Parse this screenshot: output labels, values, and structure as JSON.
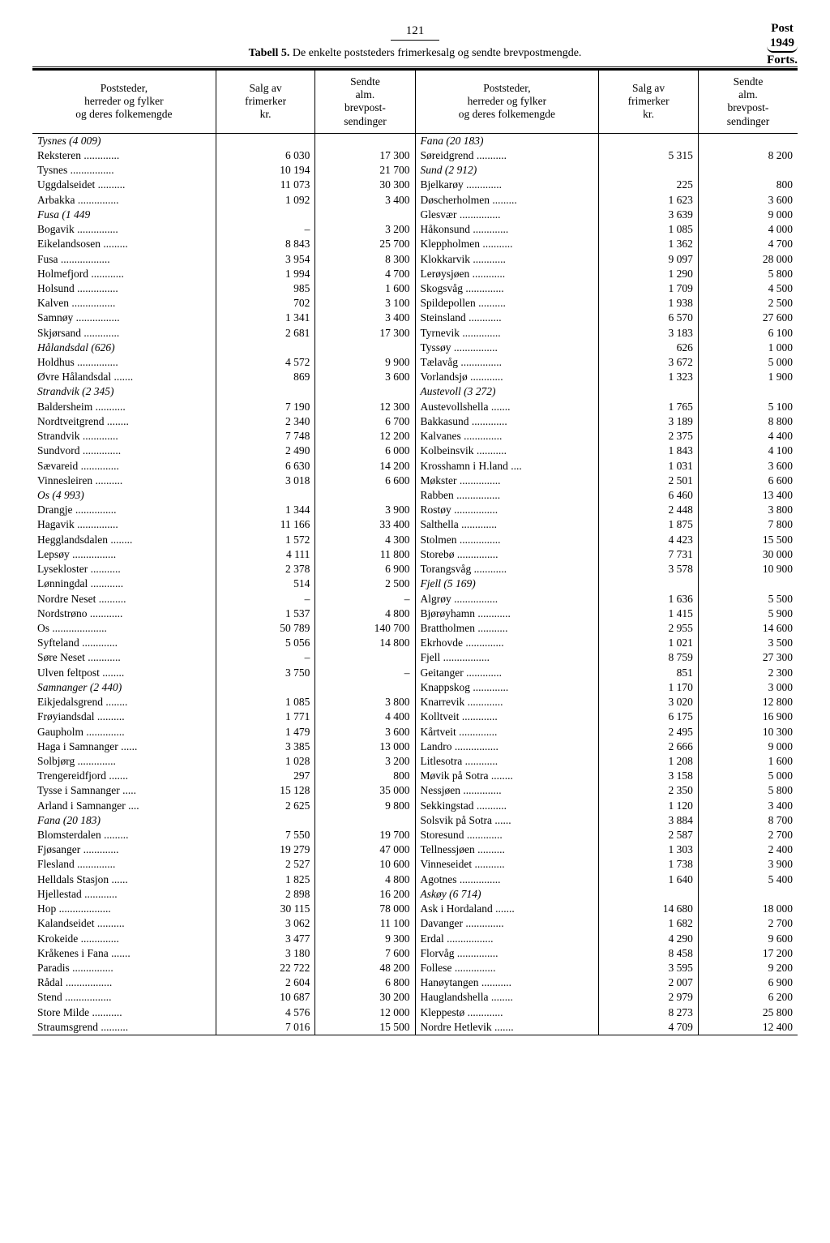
{
  "page_number": "121",
  "top_right_title": "Post",
  "top_right_year": "1949",
  "top_right_cont": "Forts.",
  "table_label": "Tabell 5.",
  "table_title": "De enkelte poststeders frimerkesalg og sendte brevpostmengde.",
  "header_col1": "Poststeder,\nherreder og fylker\nog deres folkemengde",
  "header_col2": "Salg av\nfrimerker\nkr.",
  "header_col3": "Sendte\nalm.\nbrevpost-\nsendinger",
  "left": [
    {
      "n": "Tysnes (4 009)",
      "r": true
    },
    {
      "n": "Reksteren",
      "a": "6 030",
      "b": "17 300"
    },
    {
      "n": "Tysnes",
      "a": "10 194",
      "b": "21 700"
    },
    {
      "n": "Uggdalseidet",
      "a": "11 073",
      "b": "30 300"
    },
    {
      "n": "Arbakka",
      "a": "1 092",
      "b": "3 400"
    },
    {
      "n": "Fusa (1 449",
      "r": true
    },
    {
      "n": "Bogavik",
      "a": "–",
      "b": "3 200"
    },
    {
      "n": "Eikelandsosen",
      "a": "8 843",
      "b": "25 700"
    },
    {
      "n": "Fusa",
      "a": "3 954",
      "b": "8 300"
    },
    {
      "n": "Holmefjord",
      "a": "1 994",
      "b": "4 700"
    },
    {
      "n": "Holsund",
      "a": "985",
      "b": "1 600"
    },
    {
      "n": "Kalven",
      "a": "702",
      "b": "3 100"
    },
    {
      "n": "Samnøy",
      "a": "1 341",
      "b": "3 400"
    },
    {
      "n": "Skjørsand",
      "a": "2 681",
      "b": "17 300"
    },
    {
      "n": "Hålandsdal (626)",
      "r": true
    },
    {
      "n": "Holdhus",
      "a": "4 572",
      "b": "9 900"
    },
    {
      "n": "Øvre Hålandsdal",
      "a": "869",
      "b": "3 600"
    },
    {
      "n": "Strandvik (2 345)",
      "r": true
    },
    {
      "n": "Baldersheim",
      "a": "7 190",
      "b": "12 300"
    },
    {
      "n": "Nordtveitgrend",
      "a": "2 340",
      "b": "6 700"
    },
    {
      "n": "Strandvik",
      "a": "7 748",
      "b": "12 200"
    },
    {
      "n": "Sundvord",
      "a": "2 490",
      "b": "6 000"
    },
    {
      "n": "Sævareid",
      "a": "6 630",
      "b": "14 200"
    },
    {
      "n": "Vinnesleiren",
      "a": "3 018",
      "b": "6 600"
    },
    {
      "n": "Os (4 993)",
      "r": true
    },
    {
      "n": "Drangje",
      "a": "1 344",
      "b": "3 900"
    },
    {
      "n": "Hagavik",
      "a": "11 166",
      "b": "33 400"
    },
    {
      "n": "Hegglandsdalen",
      "a": "1 572",
      "b": "4 300"
    },
    {
      "n": "Lepsøy",
      "a": "4 111",
      "b": "11 800"
    },
    {
      "n": "Lysekloster",
      "a": "2 378",
      "b": "6 900"
    },
    {
      "n": "Lønningdal",
      "a": "514",
      "b": "2 500"
    },
    {
      "n": "Nordre Neset",
      "a": "–",
      "b": "–"
    },
    {
      "n": "Nordstrøno",
      "a": "1 537",
      "b": "4 800"
    },
    {
      "n": "Os",
      "a": "50 789",
      "b": "140 700"
    },
    {
      "n": "Syfteland",
      "a": "5 056",
      "b": "14 800"
    },
    {
      "n": "Søre Neset",
      "a": "–",
      "b": ""
    },
    {
      "n": "Ulven feltpost",
      "a": "3 750",
      "b": "–"
    },
    {
      "n": "Samnanger (2 440)",
      "r": true
    },
    {
      "n": "Eikjedalsgrend",
      "a": "1 085",
      "b": "3 800"
    },
    {
      "n": "Frøyiandsdal",
      "a": "1 771",
      "b": "4 400"
    },
    {
      "n": "Gaupholm",
      "a": "1 479",
      "b": "3 600"
    },
    {
      "n": "Haga i Samnanger",
      "a": "3 385",
      "b": "13 000"
    },
    {
      "n": "Solbjørg",
      "a": "1 028",
      "b": "3 200"
    },
    {
      "n": "Trengereidfjord",
      "a": "297",
      "b": "800"
    },
    {
      "n": "Tysse i Samnanger",
      "a": "15 128",
      "b": "35 000"
    },
    {
      "n": "Arland i Samnanger",
      "a": "2 625",
      "b": "9 800"
    },
    {
      "n": "Fana (20 183)",
      "r": true
    },
    {
      "n": "Blomsterdalen",
      "a": "7 550",
      "b": "19 700"
    },
    {
      "n": "Fjøsanger",
      "a": "19 279",
      "b": "47 000"
    },
    {
      "n": "Flesland",
      "a": "2 527",
      "b": "10 600"
    },
    {
      "n": "Helldals Stasjon",
      "a": "1 825",
      "b": "4 800"
    },
    {
      "n": "Hjellestad",
      "a": "2 898",
      "b": "16 200"
    },
    {
      "n": "Hop",
      "a": "30 115",
      "b": "78 000"
    },
    {
      "n": "Kalandseidet",
      "a": "3 062",
      "b": "11 100"
    },
    {
      "n": "Krokeide",
      "a": "3 477",
      "b": "9 300"
    },
    {
      "n": "Kråkenes i Fana",
      "a": "3 180",
      "b": "7 600"
    },
    {
      "n": "Paradis",
      "a": "22 722",
      "b": "48 200"
    },
    {
      "n": "Rådal",
      "a": "2 604",
      "b": "6 800"
    },
    {
      "n": "Stend",
      "a": "10 687",
      "b": "30 200"
    },
    {
      "n": "Store Milde",
      "a": "4 576",
      "b": "12 000"
    },
    {
      "n": "Straumsgrend",
      "a": "7 016",
      "b": "15 500"
    }
  ],
  "right": [
    {
      "n": "Fana (20 183)",
      "r": true
    },
    {
      "n": "Søreidgrend",
      "a": "5 315",
      "b": "8 200"
    },
    {
      "n": "Sund (2 912)",
      "r": true
    },
    {
      "n": "Bjelkarøy",
      "a": "225",
      "b": "800"
    },
    {
      "n": "Døscherholmen",
      "a": "1 623",
      "b": "3 600"
    },
    {
      "n": "Glesvær",
      "a": "3 639",
      "b": "9 000"
    },
    {
      "n": "Håkonsund",
      "a": "1 085",
      "b": "4 000"
    },
    {
      "n": "Kleppholmen",
      "a": "1 362",
      "b": "4 700"
    },
    {
      "n": "Klokkarvik",
      "a": "9 097",
      "b": "28 000"
    },
    {
      "n": "Lerøysjøen",
      "a": "1 290",
      "b": "5 800"
    },
    {
      "n": "Skogsvåg",
      "a": "1 709",
      "b": "4 500"
    },
    {
      "n": "Spildepollen",
      "a": "1 938",
      "b": "2 500"
    },
    {
      "n": "Steinsland",
      "a": "6 570",
      "b": "27 600"
    },
    {
      "n": "Tyrnevik",
      "a": "3 183",
      "b": "6 100"
    },
    {
      "n": "Tyssøy",
      "a": "626",
      "b": "1 000"
    },
    {
      "n": "Tælavåg",
      "a": "3 672",
      "b": "5 000"
    },
    {
      "n": "Vorlandsjø",
      "a": "1 323",
      "b": "1 900"
    },
    {
      "n": "Austevoll (3 272)",
      "r": true
    },
    {
      "n": "Austevollshella",
      "a": "1 765",
      "b": "5 100"
    },
    {
      "n": "Bakkasund",
      "a": "3 189",
      "b": "8 800"
    },
    {
      "n": "Kalvanes",
      "a": "2 375",
      "b": "4 400"
    },
    {
      "n": "Kolbeinsvik",
      "a": "1 843",
      "b": "4 100"
    },
    {
      "n": "Krosshamn i H.land",
      "a": "1 031",
      "b": "3 600"
    },
    {
      "n": "Møkster",
      "a": "2 501",
      "b": "6 600"
    },
    {
      "n": "Rabben",
      "a": "6 460",
      "b": "13 400"
    },
    {
      "n": "Rostøy",
      "a": "2 448",
      "b": "3 800"
    },
    {
      "n": "Salthella",
      "a": "1 875",
      "b": "7 800"
    },
    {
      "n": "Stolmen",
      "a": "4 423",
      "b": "15 500"
    },
    {
      "n": "Storebø",
      "a": "7 731",
      "b": "30 000"
    },
    {
      "n": "Torangsvåg",
      "a": "3 578",
      "b": "10 900"
    },
    {
      "n": "Fjell (5 169)",
      "r": true
    },
    {
      "n": "Algrøy",
      "a": "1 636",
      "b": "5 500"
    },
    {
      "n": "Bjørøyhamn",
      "a": "1 415",
      "b": "5 900"
    },
    {
      "n": "Brattholmen",
      "a": "2 955",
      "b": "14 600"
    },
    {
      "n": "Ekrhovde",
      "a": "1 021",
      "b": "3 500"
    },
    {
      "n": "Fjell",
      "a": "8 759",
      "b": "27 300"
    },
    {
      "n": "Geitanger",
      "a": "851",
      "b": "2 300"
    },
    {
      "n": "Knappskog",
      "a": "1 170",
      "b": "3 000"
    },
    {
      "n": "Knarrevik",
      "a": "3 020",
      "b": "12 800"
    },
    {
      "n": "Kolltveit",
      "a": "6 175",
      "b": "16 900"
    },
    {
      "n": "Kårtveit",
      "a": "2 495",
      "b": "10 300"
    },
    {
      "n": "Landro",
      "a": "2 666",
      "b": "9 000"
    },
    {
      "n": "Litlesotra",
      "a": "1 208",
      "b": "1 600"
    },
    {
      "n": "Møvik på Sotra",
      "a": "3 158",
      "b": "5 000"
    },
    {
      "n": "Nessjøen",
      "a": "2 350",
      "b": "5 800"
    },
    {
      "n": "Sekkingstad",
      "a": "1 120",
      "b": "3 400"
    },
    {
      "n": "Solsvik på Sotra",
      "a": "3 884",
      "b": "8 700"
    },
    {
      "n": "Storesund",
      "a": "2 587",
      "b": "2 700"
    },
    {
      "n": "Tellnessjøen",
      "a": "1 303",
      "b": "2 400"
    },
    {
      "n": "Vinneseidet",
      "a": "1 738",
      "b": "3 900"
    },
    {
      "n": "Agotnes",
      "a": "1 640",
      "b": "5 400"
    },
    {
      "n": "Askøy (6 714)",
      "r": true
    },
    {
      "n": "Ask i Hordaland",
      "a": "14 680",
      "b": "18 000"
    },
    {
      "n": "Davanger",
      "a": "1 682",
      "b": "2 700"
    },
    {
      "n": "Erdal",
      "a": "4 290",
      "b": "9 600"
    },
    {
      "n": "Florvåg",
      "a": "8 458",
      "b": "17 200"
    },
    {
      "n": "Follese",
      "a": "3 595",
      "b": "9 200"
    },
    {
      "n": "Hanøytangen",
      "a": "2 007",
      "b": "6 900"
    },
    {
      "n": "Hauglandshella",
      "a": "2 979",
      "b": "6 200"
    },
    {
      "n": "Kleppestø",
      "a": "8 273",
      "b": "25 800"
    },
    {
      "n": "Nordre Hetlevik",
      "a": "4 709",
      "b": "12 400"
    }
  ]
}
